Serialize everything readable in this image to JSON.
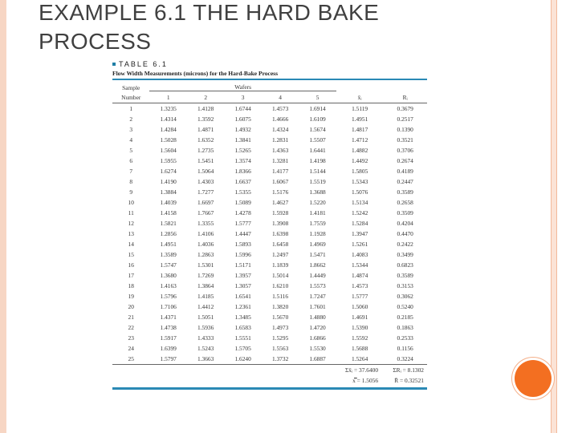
{
  "slide": {
    "title": "EXAMPLE 6.1 THE HARD BAKE PROCESS"
  },
  "table": {
    "label": "TABLE",
    "number": "6.1",
    "caption": "Flow Width Measurements (microns) for the Hard-Bake Process",
    "group_header": "Wafers",
    "headers": {
      "sample": "Sample",
      "number": "Number",
      "w1": "1",
      "w2": "2",
      "w3": "3",
      "w4": "4",
      "w5": "5",
      "xbar": "x̄ᵢ",
      "range": "Rᵢ"
    },
    "rows": [
      [
        "1",
        "1.3235",
        "1.4128",
        "1.6744",
        "1.4573",
        "1.6914",
        "1.5119",
        "0.3679"
      ],
      [
        "2",
        "1.4314",
        "1.3592",
        "1.6075",
        "1.4666",
        "1.6109",
        "1.4951",
        "0.2517"
      ],
      [
        "3",
        "1.4284",
        "1.4871",
        "1.4932",
        "1.4324",
        "1.5674",
        "1.4817",
        "0.1390"
      ],
      [
        "4",
        "1.5028",
        "1.6352",
        "1.3841",
        "1.2831",
        "1.5507",
        "1.4712",
        "0.3521"
      ],
      [
        "5",
        "1.5604",
        "1.2735",
        "1.5265",
        "1.4363",
        "1.6441",
        "1.4882",
        "0.3706"
      ],
      [
        "6",
        "1.5955",
        "1.5451",
        "1.3574",
        "1.3281",
        "1.4198",
        "1.4492",
        "0.2674"
      ],
      [
        "7",
        "1.6274",
        "1.5064",
        "1.8366",
        "1.4177",
        "1.5144",
        "1.5805",
        "0.4189"
      ],
      [
        "8",
        "1.4190",
        "1.4303",
        "1.6637",
        "1.6067",
        "1.5519",
        "1.5343",
        "0.2447"
      ],
      [
        "9",
        "1.3884",
        "1.7277",
        "1.5355",
        "1.5176",
        "1.3688",
        "1.5076",
        "0.3589"
      ],
      [
        "10",
        "1.4039",
        "1.6697",
        "1.5089",
        "1.4627",
        "1.5220",
        "1.5134",
        "0.2658"
      ],
      [
        "11",
        "1.4158",
        "1.7667",
        "1.4278",
        "1.5928",
        "1.4181",
        "1.5242",
        "0.3509"
      ],
      [
        "12",
        "1.5821",
        "1.3355",
        "1.5777",
        "1.3908",
        "1.7559",
        "1.5284",
        "0.4204"
      ],
      [
        "13",
        "1.2856",
        "1.4106",
        "1.4447",
        "1.6398",
        "1.1928",
        "1.3947",
        "0.4470"
      ],
      [
        "14",
        "1.4951",
        "1.4036",
        "1.5893",
        "1.6458",
        "1.4969",
        "1.5261",
        "0.2422"
      ],
      [
        "15",
        "1.3589",
        "1.2863",
        "1.5996",
        "1.2497",
        "1.5471",
        "1.4083",
        "0.3499"
      ],
      [
        "16",
        "1.5747",
        "1.5301",
        "1.5171",
        "1.1839",
        "1.8662",
        "1.5344",
        "0.6823"
      ],
      [
        "17",
        "1.3680",
        "1.7269",
        "1.3957",
        "1.5014",
        "1.4449",
        "1.4874",
        "0.3589"
      ],
      [
        "18",
        "1.4163",
        "1.3864",
        "1.3057",
        "1.6210",
        "1.5573",
        "1.4573",
        "0.3153"
      ],
      [
        "19",
        "1.5796",
        "1.4185",
        "1.6541",
        "1.5116",
        "1.7247",
        "1.5777",
        "0.3062"
      ],
      [
        "20",
        "1.7106",
        "1.4412",
        "1.2361",
        "1.3820",
        "1.7601",
        "1.5060",
        "0.5240"
      ],
      [
        "21",
        "1.4371",
        "1.5051",
        "1.3485",
        "1.5670",
        "1.4880",
        "1.4691",
        "0.2185"
      ],
      [
        "22",
        "1.4738",
        "1.5936",
        "1.6583",
        "1.4973",
        "1.4720",
        "1.5390",
        "0.1863"
      ],
      [
        "23",
        "1.5917",
        "1.4333",
        "1.5551",
        "1.5295",
        "1.6866",
        "1.5592",
        "0.2533"
      ],
      [
        "24",
        "1.6399",
        "1.5243",
        "1.5705",
        "1.5563",
        "1.5530",
        "1.5688",
        "0.1156"
      ],
      [
        "25",
        "1.5797",
        "1.3663",
        "1.6240",
        "1.3732",
        "1.6887",
        "1.5264",
        "0.3224"
      ]
    ],
    "summary": {
      "sum_xbar": "Σx̄ᵢ = 37.6400",
      "sum_r": "ΣRᵢ = 8.1302",
      "grand_mean": "x̿ = 1.5056",
      "mean_r": "R̄ = 0.32521"
    }
  },
  "colors": {
    "accent_orange": "#f36f21",
    "frame_peach": "#f7d6c4",
    "table_rule_blue": "#2a89b5"
  }
}
